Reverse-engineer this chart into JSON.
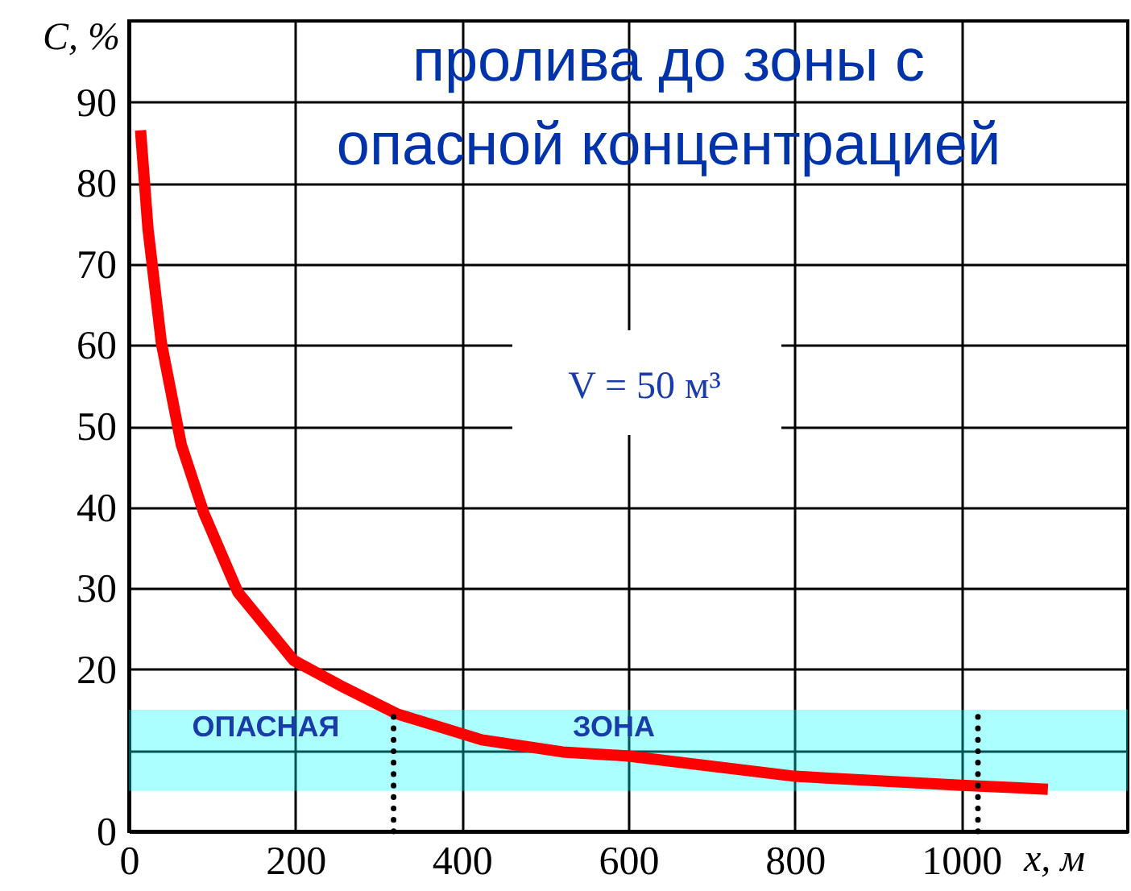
{
  "chart_data": {
    "type": "line",
    "title": "пролива до зоны с опасной концентрацией",
    "xlabel": "x, м",
    "ylabel": "C, %",
    "xlim": [
      0,
      1200
    ],
    "xticks": [
      0,
      200,
      400,
      600,
      800,
      1000
    ],
    "ylim": [
      0,
      100
    ],
    "yticks": [
      0,
      {
        "value": 10,
        "label": null
      },
      20,
      30,
      40,
      50,
      60,
      70,
      80,
      90
    ],
    "grid": true,
    "marker": "none",
    "line_style": "solid",
    "series": [
      {
        "color": "#ff0000",
        "x": [
          14,
          23,
          39,
          63,
          90,
          131,
          198,
          254,
          322,
          424,
          521,
          600,
          800,
          1000,
          1104
        ],
        "values": [
          86.5,
          74.3,
          60.3,
          47.7,
          39.3,
          29.5,
          21.1,
          18.0,
          14.5,
          11.3,
          9.8,
          9.3,
          6.8,
          5.7,
          5.2
        ]
      }
    ],
    "bands": [
      {
        "axis": "y",
        "from": 5,
        "to": 15,
        "color": "#00ffff"
      }
    ],
    "ref_lines": [
      {
        "axis": "x",
        "value": 318,
        "line_style": "dotted",
        "color": "#000000"
      },
      {
        "axis": "x",
        "value": 1020,
        "line_style": "dotted",
        "color": "#000000"
      }
    ],
    "annotations": [
      "V = 50 м³",
      "ОПАСНАЯ",
      "ЗОНА"
    ]
  }
}
